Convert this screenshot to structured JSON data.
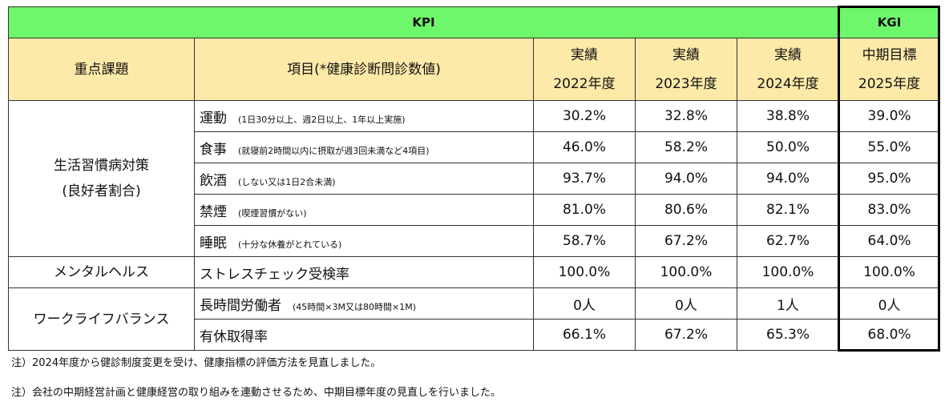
{
  "header": {
    "kpi": "KPI",
    "kgi": "KGI",
    "col_focus": "重点課題",
    "col_item": "項目(*健康診断問診数値)",
    "years": [
      {
        "l1": "実績",
        "l2": "2022年度"
      },
      {
        "l1": "実績",
        "l2": "2023年度"
      },
      {
        "l1": "実績",
        "l2": "2024年度"
      },
      {
        "l1": "中期目標",
        "l2": "2025年度"
      }
    ]
  },
  "groups": {
    "lifestyle_1": "生活習慣病対策",
    "lifestyle_2": "(良好者割合)",
    "mental": "メンタルヘルス",
    "wlb": "ワークライフバランス"
  },
  "rows": [
    {
      "item": "運動",
      "sub": "(1日30分以上、週2日以上、1年以上実施)",
      "v": [
        "30.2%",
        "32.8%",
        "38.8%",
        "39.0%"
      ]
    },
    {
      "item": "食事",
      "sub": "(就寝前2時間以内に摂取が週3回未満など4項目)",
      "v": [
        "46.0%",
        "58.2%",
        "50.0%",
        "55.0%"
      ]
    },
    {
      "item": "飲酒",
      "sub": "(しない又は1日2合未満)",
      "v": [
        "93.7%",
        "94.0%",
        "94.0%",
        "95.0%"
      ]
    },
    {
      "item": "禁煙",
      "sub": "(喫煙習慣がない)",
      "v": [
        "81.0%",
        "80.6%",
        "82.1%",
        "83.0%"
      ]
    },
    {
      "item": "睡眠",
      "sub": "(十分な休養がとれている)",
      "v": [
        "58.7%",
        "67.2%",
        "62.7%",
        "64.0%"
      ]
    },
    {
      "item": "ストレスチェック受検率",
      "sub": "",
      "v": [
        "100.0%",
        "100.0%",
        "100.0%",
        "100.0%"
      ]
    },
    {
      "item": "長時間労働者",
      "sub": "(45時間×3M又は80時間×1M)",
      "v": [
        "0人",
        "0人",
        "1人",
        "0人"
      ]
    },
    {
      "item": "有休取得率",
      "sub": "",
      "v": [
        "66.1%",
        "67.2%",
        "65.3%",
        "68.0%"
      ]
    }
  ],
  "notes": [
    "注）2024年度から健診制度変更を受け、健康指標の評価方法を見直しました。",
    "注）会社の中期経営計画と健康経営の取り組みを連動させるため、中期目標年度の見直しを行いました。"
  ]
}
